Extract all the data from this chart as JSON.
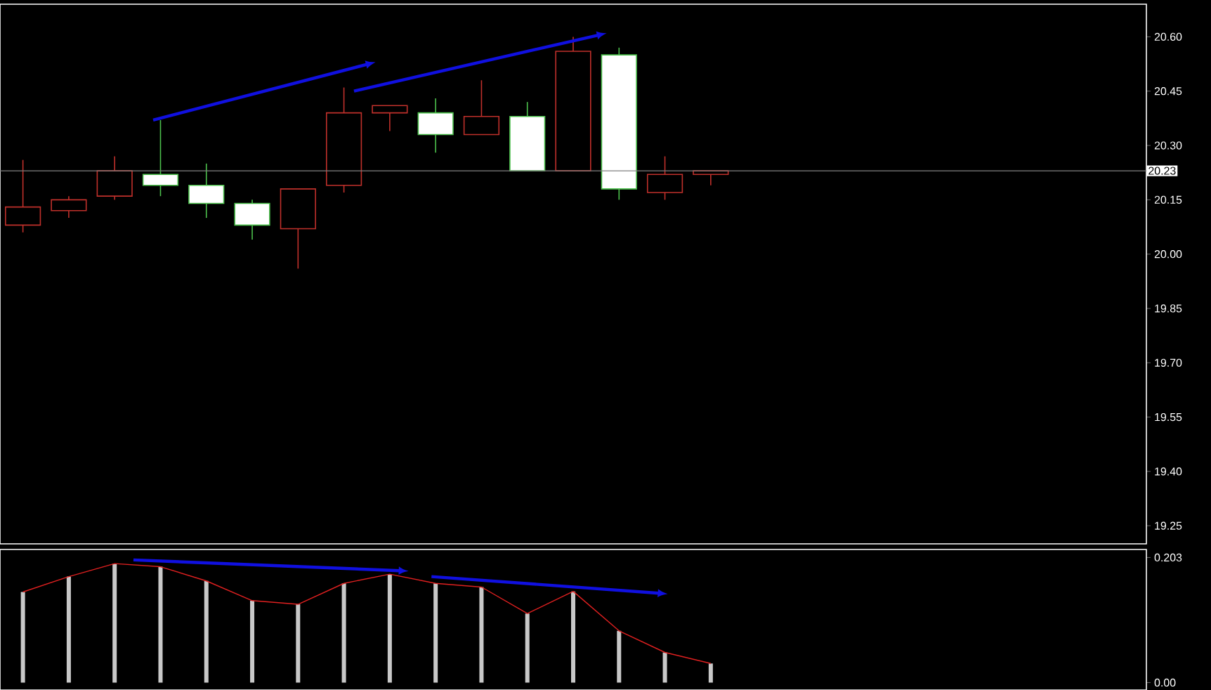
{
  "chart_data": [
    {
      "type": "candlestick",
      "tick_labels": "y",
      "categories": [
        null,
        null,
        null,
        null,
        null,
        null,
        null,
        null,
        null,
        null,
        null,
        null,
        null,
        null,
        null,
        null,
        null,
        null,
        null,
        null,
        null,
        null,
        null,
        null,
        null
      ],
      "ohlc": [
        [
          20.08,
          20.26,
          20.06,
          20.13
        ],
        [
          20.12,
          20.16,
          20.1,
          20.15
        ],
        [
          20.16,
          20.27,
          20.15,
          20.23
        ],
        [
          20.22,
          20.37,
          20.16,
          20.19
        ],
        [
          20.19,
          20.25,
          20.1,
          20.14
        ],
        [
          20.14,
          20.15,
          20.04,
          20.08
        ],
        [
          20.07,
          20.18,
          19.96,
          20.18
        ],
        [
          20.19,
          20.46,
          20.17,
          20.39
        ],
        [
          20.39,
          20.41,
          20.34,
          20.41
        ],
        [
          20.39,
          20.43,
          20.28,
          20.33
        ],
        [
          20.33,
          20.48,
          20.33,
          20.38
        ],
        [
          20.38,
          20.42,
          20.23,
          20.23
        ],
        [
          20.23,
          20.6,
          20.23,
          20.56
        ],
        [
          20.55,
          20.57,
          20.15,
          20.18
        ],
        [
          20.17,
          20.27,
          20.15,
          20.22
        ],
        [
          20.22,
          20.23,
          20.19,
          20.23
        ],
        null,
        null,
        null,
        null,
        null,
        null,
        null,
        null,
        null
      ],
      "colors": [
        "#c0302b",
        "#c0302b",
        "#c0302b",
        "#4cc04c",
        "#4cc04c",
        "#4cc04c",
        "#c0302b",
        "#c0302b",
        "#c0302b",
        "#4cc04c",
        "#c0302b",
        "#4cc04c",
        "#c0302b",
        "#4cc04c",
        "#c0302b",
        "#c0302b",
        null,
        null,
        null,
        null,
        null,
        null,
        null,
        null,
        null
      ],
      "ylim": [
        19.2,
        20.69
      ],
      "yticks": [
        {
          "value": 19.25,
          "label": "19.25"
        },
        {
          "value": 19.4,
          "label": "19.40"
        },
        {
          "value": 19.55,
          "label": "19.55"
        },
        {
          "value": 19.7,
          "label": "19.70"
        },
        {
          "value": 19.85,
          "label": "19.85"
        },
        {
          "value": 20.0,
          "label": "20.00"
        },
        {
          "value": 20.15,
          "label": "20.15"
        },
        {
          "value": 20.3,
          "label": "20.30"
        },
        {
          "value": 20.45,
          "label": "20.45"
        },
        {
          "value": 20.6,
          "label": "20.60"
        }
      ],
      "ref_lines": [
        {
          "axis": "y",
          "value": 20.23,
          "label": "20.23",
          "color": "#808080"
        }
      ]
    },
    {
      "type": "bar",
      "tick_labels": "y",
      "categories": [
        null,
        null,
        null,
        null,
        null,
        null,
        null,
        null,
        null,
        null,
        null,
        null,
        null,
        null,
        null,
        null,
        null,
        null,
        null,
        null,
        null,
        null,
        null,
        null,
        null
      ],
      "series": [
        {
          "type": "bar",
          "color": "#c8c8c8",
          "values": [
            0.147,
            0.172,
            0.193,
            0.188,
            0.165,
            0.133,
            0.127,
            0.161,
            0.176,
            0.161,
            0.155,
            0.112,
            0.148,
            0.084,
            0.049,
            0.031,
            null,
            null,
            null,
            null,
            null,
            null,
            null,
            null,
            null
          ]
        },
        {
          "type": "line",
          "color": "#e02020",
          "values": [
            0.147,
            0.172,
            0.193,
            0.188,
            0.165,
            0.133,
            0.127,
            0.161,
            0.176,
            0.161,
            0.155,
            0.112,
            0.148,
            0.084,
            0.049,
            0.031,
            null,
            null,
            null,
            null,
            null,
            null,
            null,
            null,
            null
          ]
        }
      ],
      "ylim": [
        -0.012,
        0.216
      ],
      "yticks": [
        {
          "value": 0,
          "label": "0.00"
        },
        0.203
      ]
    }
  ]
}
